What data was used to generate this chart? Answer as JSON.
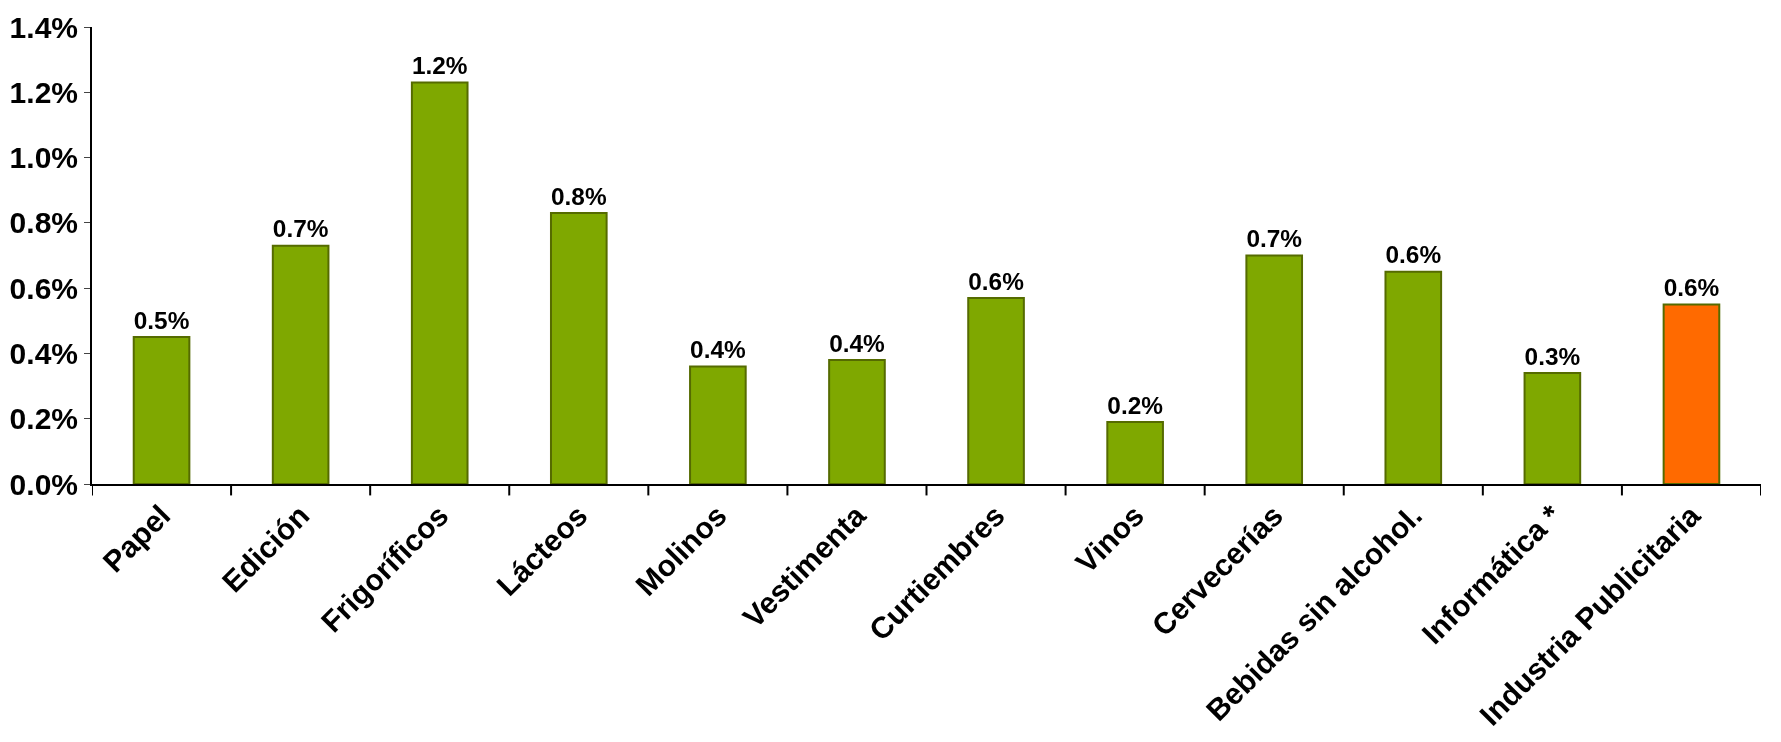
{
  "chart_data": {
    "type": "bar",
    "categories": [
      "Papel",
      "Edición",
      "Frigoríficos",
      "Lácteos",
      "Molinos",
      "Vestimenta",
      "Curtiembres",
      "Vinos",
      "Cervecerías",
      "Bebidas sin alcohol.",
      "Informática *",
      "Industria Publicitaria"
    ],
    "values": [
      0.45,
      0.73,
      1.23,
      0.83,
      0.36,
      0.38,
      0.57,
      0.19,
      0.7,
      0.65,
      0.34,
      0.55
    ],
    "value_labels": [
      "0.5%",
      "0.7%",
      "1.2%",
      "0.8%",
      "0.4%",
      "0.4%",
      "0.6%",
      "0.2%",
      "0.7%",
      "0.6%",
      "0.3%",
      "0.6%"
    ],
    "colors": [
      "#7fa800",
      "#7fa800",
      "#7fa800",
      "#7fa800",
      "#7fa800",
      "#7fa800",
      "#7fa800",
      "#7fa800",
      "#7fa800",
      "#7fa800",
      "#7fa800",
      "#ff6a00"
    ],
    "ylim": [
      0,
      1.4
    ],
    "yticks": [
      {
        "value": 0,
        "label": "0.0%"
      },
      {
        "value": 0.2,
        "label": "0.2%"
      },
      {
        "value": 0.4,
        "label": "0.4%"
      },
      {
        "value": 0.6,
        "label": "0.6%"
      },
      {
        "value": 0.8,
        "label": "0.8%"
      },
      {
        "value": 1.0,
        "label": "1.0%"
      },
      {
        "value": 1.2,
        "label": "1.2%"
      },
      {
        "value": 1.4,
        "label": "1.4%"
      }
    ],
    "data_labels": false
  }
}
